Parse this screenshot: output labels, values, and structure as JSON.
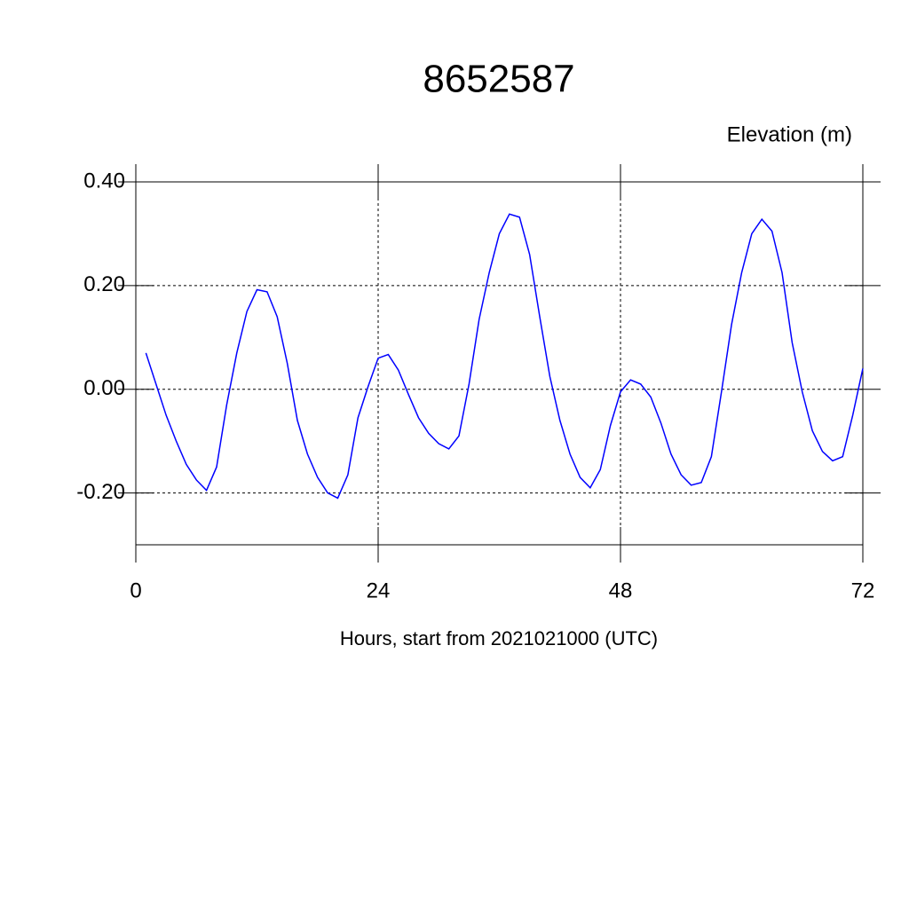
{
  "chart_data": {
    "type": "line",
    "title": "8652587",
    "y_axis_label": "Elevation (m)",
    "x_axis_label": "Hours, start from 2021021000 (UTC)",
    "xlim": [
      0,
      72
    ],
    "xticks": [
      0,
      24,
      48,
      72
    ],
    "ylim": [
      -0.3,
      0.4
    ],
    "yticks": [
      {
        "value": -0.2,
        "label": "-0.20"
      },
      {
        "value": 0,
        "label": "0.00"
      },
      {
        "value": 0.2,
        "label": "0.20"
      },
      {
        "value": 0.4,
        "label": "0.40"
      }
    ],
    "grid": true,
    "series": [
      {
        "color": "#0000ff",
        "x": [
          1,
          2,
          3,
          4,
          5,
          6,
          7,
          8,
          9,
          10,
          11,
          12,
          13,
          14,
          15,
          16,
          17,
          18,
          19,
          20,
          21,
          22,
          23,
          24,
          25,
          26,
          27,
          28,
          29,
          30,
          31,
          32,
          33,
          34,
          35,
          36,
          37,
          38,
          39,
          40,
          41,
          42,
          43,
          44,
          45,
          46,
          47,
          48,
          49,
          50,
          51,
          52,
          53,
          54,
          55,
          56,
          57,
          58,
          59,
          60,
          61,
          62,
          63,
          64,
          65,
          66,
          67,
          68,
          69,
          70,
          71,
          72
        ],
        "values": [
          0.07,
          0.01,
          -0.05,
          -0.1,
          -0.145,
          -0.175,
          -0.195,
          -0.15,
          -0.03,
          0.07,
          0.15,
          0.192,
          0.188,
          0.14,
          0.05,
          -0.06,
          -0.125,
          -0.17,
          -0.2,
          -0.21,
          -0.165,
          -0.055,
          0.005,
          0.06,
          0.067,
          0.037,
          -0.01,
          -0.055,
          -0.085,
          -0.105,
          -0.115,
          -0.09,
          0.01,
          0.135,
          0.225,
          0.3,
          0.338,
          0.332,
          0.26,
          0.14,
          0.025,
          -0.06,
          -0.125,
          -0.17,
          -0.19,
          -0.155,
          -0.07,
          -0.005,
          0.018,
          0.01,
          -0.015,
          -0.065,
          -0.125,
          -0.165,
          -0.185,
          -0.18,
          -0.13,
          -0.005,
          0.125,
          0.225,
          0.3,
          0.328,
          0.305,
          0.225,
          0.09,
          -0.005,
          -0.08,
          -0.12,
          -0.138,
          -0.13,
          -0.05,
          0.04
        ]
      }
    ]
  }
}
